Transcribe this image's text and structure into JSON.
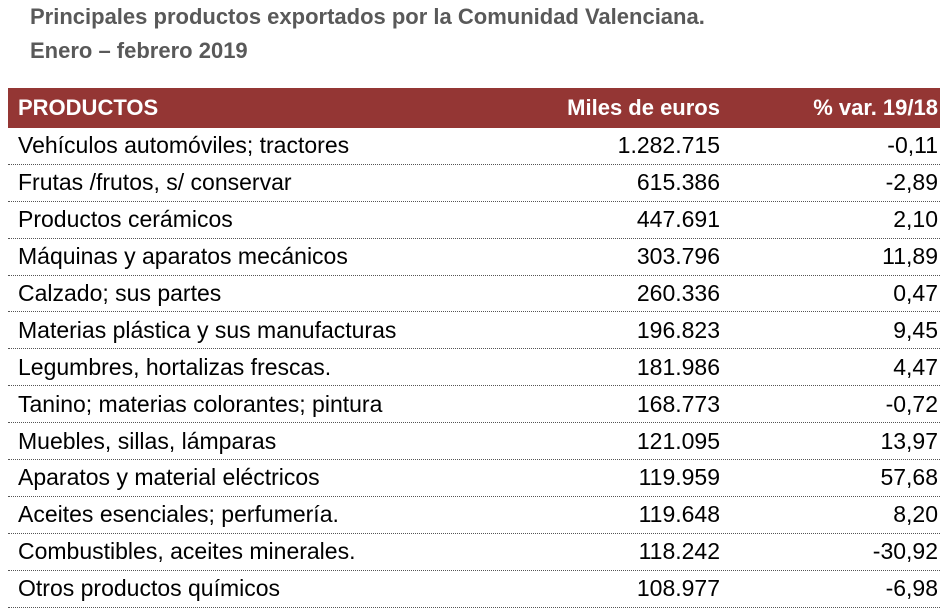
{
  "header": {
    "title": "Principales productos exportados por la Comunidad Valenciana.",
    "subtitle": "Enero – febrero 2019"
  },
  "table": {
    "columns": [
      "PRODUCTOS",
      "Miles de euros",
      "% var. 19/18"
    ],
    "rows": [
      [
        "Vehículos automóviles; tractores",
        "1.282.715",
        "-0,11"
      ],
      [
        "Frutas /frutos, s/ conservar",
        "615.386",
        "-2,89"
      ],
      [
        "Productos cerámicos",
        "447.691",
        "2,10"
      ],
      [
        "Máquinas y aparatos mecánicos",
        "303.796",
        "11,89"
      ],
      [
        "Calzado; sus partes",
        "260.336",
        "0,47"
      ],
      [
        "Materias plástica y sus manufacturas",
        "196.823",
        "9,45"
      ],
      [
        "Legumbres, hortalizas frescas.",
        "181.986",
        "4,47"
      ],
      [
        "Tanino; materias colorantes; pintura",
        "168.773",
        "-0,72"
      ],
      [
        "Muebles, sillas, lámparas",
        "121.095",
        "13,97"
      ],
      [
        "Aparatos y material eléctricos",
        "119.959",
        "57,68"
      ],
      [
        "Aceites esenciales; perfumería.",
        "119.648",
        "8,20"
      ],
      [
        "Combustibles, aceites minerales.",
        "118.242",
        "-30,92"
      ],
      [
        "Otros productos químicos",
        "108.977",
        "-6,98"
      ]
    ]
  }
}
